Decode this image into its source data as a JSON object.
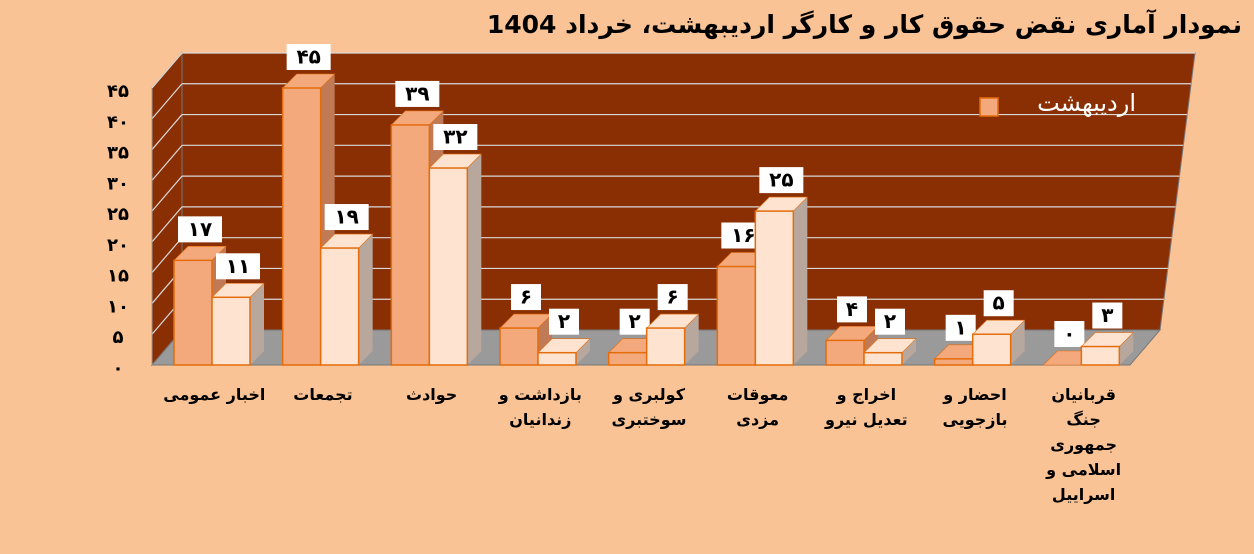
{
  "chart_data": {
    "type": "bar3d",
    "title": "نمودار آماری نقض حقوق کار و کارگر اردیبهشت، خرداد 1404",
    "categories": [
      "اخبار عمومی",
      "تجمعات",
      "حوادث",
      "بازداشت و زندانیان",
      "کولبری و سوختبری",
      "معوقات مزدی",
      "اخراج و تعدیل نیرو",
      "احضار و بازجویی",
      "قربانیان جنگ جمهوری اسلامی و اسراییل"
    ],
    "series": [
      {
        "name": "اردیبهشت",
        "color": "#f4a97c",
        "values": [
          17,
          45,
          39,
          6,
          2,
          16,
          4,
          1,
          0
        ],
        "value_labels": [
          "۱۷",
          "۴۵",
          "۳۹",
          "۶",
          "۲",
          "۱۶",
          "۴",
          "۱",
          "۰"
        ]
      },
      {
        "color": "#fde3d0",
        "values": [
          11,
          19,
          32,
          2,
          6,
          25,
          2,
          5,
          3
        ],
        "value_labels": [
          "۱۱",
          "۱۹",
          "۳۲",
          "۲",
          "۶",
          "۲۵",
          "۲",
          "۵",
          "۳"
        ]
      }
    ],
    "ylim": [
      0,
      45
    ],
    "yticks": [
      {
        "value": 0,
        "label": "۰"
      },
      {
        "value": 5,
        "label": "۵"
      },
      {
        "value": 10,
        "label": "۱۰"
      },
      {
        "value": 15,
        "label": "۱۵"
      },
      {
        "value": 20,
        "label": "۲۰"
      },
      {
        "value": 25,
        "label": "۲۵"
      },
      {
        "value": 30,
        "label": "۳۰"
      },
      {
        "value": 35,
        "label": "۳۵"
      },
      {
        "value": 40,
        "label": "۴۰"
      },
      {
        "value": 45,
        "label": "۴۵"
      }
    ],
    "grid": true,
    "legend": "top-right"
  }
}
